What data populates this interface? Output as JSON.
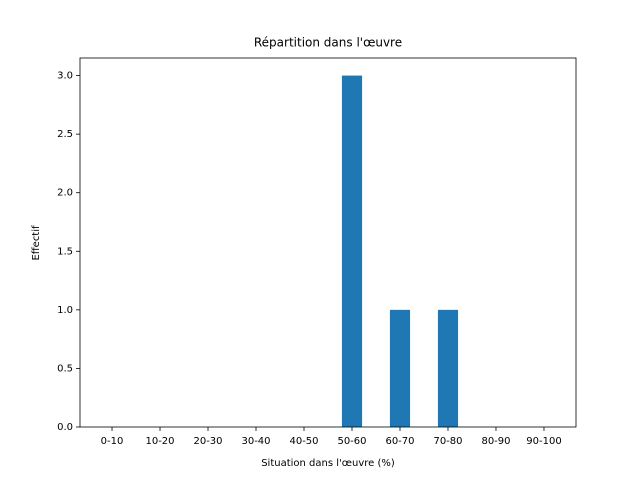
{
  "chart_data": {
    "type": "bar",
    "title": "Répartition dans l'œuvre",
    "x_label": "Situation dans l'œuvre (%)",
    "y_label": "Effectif",
    "categories": [
      "0-10",
      "10-20",
      "20-30",
      "30-40",
      "40-50",
      "50-60",
      "60-70",
      "70-80",
      "80-90",
      "90-100"
    ],
    "values": [
      0,
      0,
      0,
      0,
      0,
      3,
      1,
      1,
      0,
      0
    ],
    "color": "#1f77b4",
    "ylim": [
      0,
      3.15
    ],
    "yticks": [
      {
        "value": 0,
        "label": "0.0"
      },
      {
        "value": 0.5,
        "label": "0.5"
      },
      {
        "value": 1,
        "label": "1.0"
      },
      {
        "value": 1.5,
        "label": "1.5"
      },
      {
        "value": 2,
        "label": "2.0"
      },
      {
        "value": 2.5,
        "label": "2.5"
      },
      {
        "value": 3,
        "label": "3.0"
      }
    ],
    "grid": false
  }
}
